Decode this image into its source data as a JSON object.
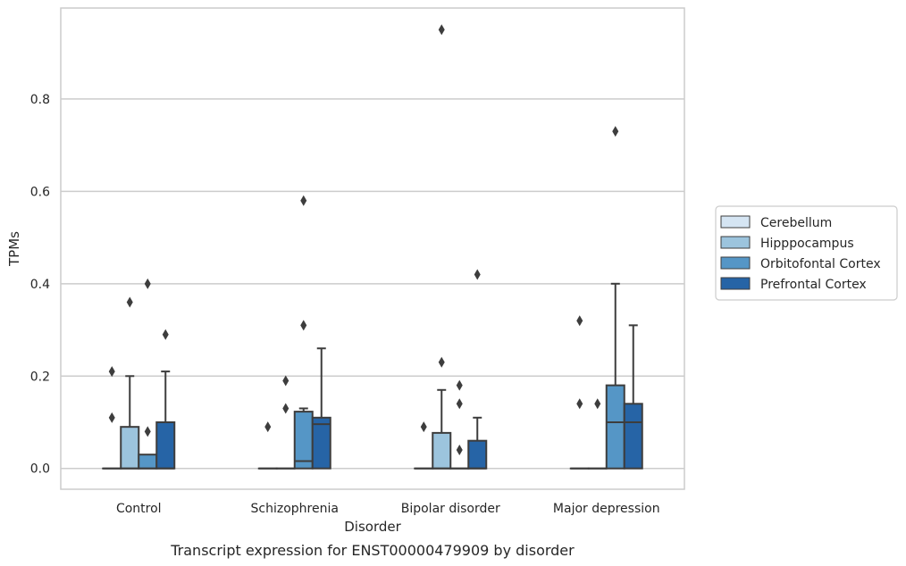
{
  "caption": "Transcript expression for ENST00000479909 by disorder",
  "chart_data": {
    "type": "box",
    "xlabel": "Disorder",
    "ylabel": "TPMs",
    "ylim": [
      -0.045,
      0.997
    ],
    "yticks": [
      0.0,
      0.2,
      0.4,
      0.6,
      0.8
    ],
    "ytick_labels": [
      "0.0",
      "0.2",
      "0.4",
      "0.6",
      "0.8"
    ],
    "grid": "horizontal",
    "legend_position": "right",
    "categories": [
      "Control",
      "Schizophrenia",
      "Bipolar disorder",
      "Major depression"
    ],
    "series": [
      {
        "name": "Cerebellum",
        "color": "#d5e5f3",
        "boxes": [
          {
            "q1": 0,
            "median": 0,
            "q3": 0,
            "whisker_low": 0,
            "whisker_high": 0,
            "outliers": [
              0.11,
              0.21
            ]
          },
          {
            "q1": 0,
            "median": 0,
            "q3": 0,
            "whisker_low": 0,
            "whisker_high": 0,
            "outliers": [
              0.09
            ]
          },
          {
            "q1": 0,
            "median": 0,
            "q3": 0,
            "whisker_low": 0,
            "whisker_high": 0,
            "outliers": [
              0.09
            ]
          },
          {
            "q1": 0,
            "median": 0,
            "q3": 0,
            "whisker_low": 0,
            "whisker_high": 0,
            "outliers": [
              0.14,
              0.32
            ]
          }
        ]
      },
      {
        "name": "Hipppocampus",
        "color": "#9cc4dd",
        "boxes": [
          {
            "q1": 0,
            "median": 0,
            "q3": 0.09,
            "whisker_low": 0,
            "whisker_high": 0.2,
            "outliers": [
              0.36
            ]
          },
          {
            "q1": 0,
            "median": 0,
            "q3": 0,
            "whisker_low": 0,
            "whisker_high": 0,
            "outliers": [
              0.13,
              0.19
            ]
          },
          {
            "q1": 0,
            "median": 0,
            "q3": 0.077,
            "whisker_low": 0,
            "whisker_high": 0.17,
            "outliers": [
              0.23,
              0.95
            ]
          },
          {
            "q1": 0,
            "median": 0,
            "q3": 0,
            "whisker_low": 0,
            "whisker_high": 0,
            "outliers": [
              0.14
            ]
          }
        ]
      },
      {
        "name": "Orbitofontal Cortex",
        "color": "#5596c6",
        "boxes": [
          {
            "q1": 0,
            "median": 0,
            "q3": 0.03,
            "whisker_low": 0,
            "whisker_high": 0.03,
            "outliers": [
              0.08,
              0.4
            ]
          },
          {
            "q1": 0,
            "median": 0.016,
            "q3": 0.123,
            "whisker_low": 0,
            "whisker_high": 0.13,
            "outliers": [
              0.31,
              0.58
            ]
          },
          {
            "q1": 0,
            "median": 0,
            "q3": 0,
            "whisker_low": 0,
            "whisker_high": 0,
            "outliers": [
              0.04,
              0.14,
              0.18
            ]
          },
          {
            "q1": 0,
            "median": 0.1,
            "q3": 0.18,
            "whisker_low": 0,
            "whisker_high": 0.4,
            "outliers": [
              0.73
            ]
          }
        ]
      },
      {
        "name": "Prefrontal Cortex",
        "color": "#2664a6",
        "boxes": [
          {
            "q1": 0,
            "median": 0,
            "q3": 0.1,
            "whisker_low": 0,
            "whisker_high": 0.21,
            "outliers": [
              0.29
            ]
          },
          {
            "q1": 0,
            "median": 0.096,
            "q3": 0.11,
            "whisker_low": 0,
            "whisker_high": 0.26,
            "outliers": []
          },
          {
            "q1": 0,
            "median": 0,
            "q3": 0.06,
            "whisker_low": 0,
            "whisker_high": 0.11,
            "outliers": [
              0.42
            ]
          },
          {
            "q1": 0,
            "median": 0.1,
            "q3": 0.14,
            "whisker_low": 0,
            "whisker_high": 0.31,
            "outliers": []
          }
        ]
      }
    ]
  }
}
